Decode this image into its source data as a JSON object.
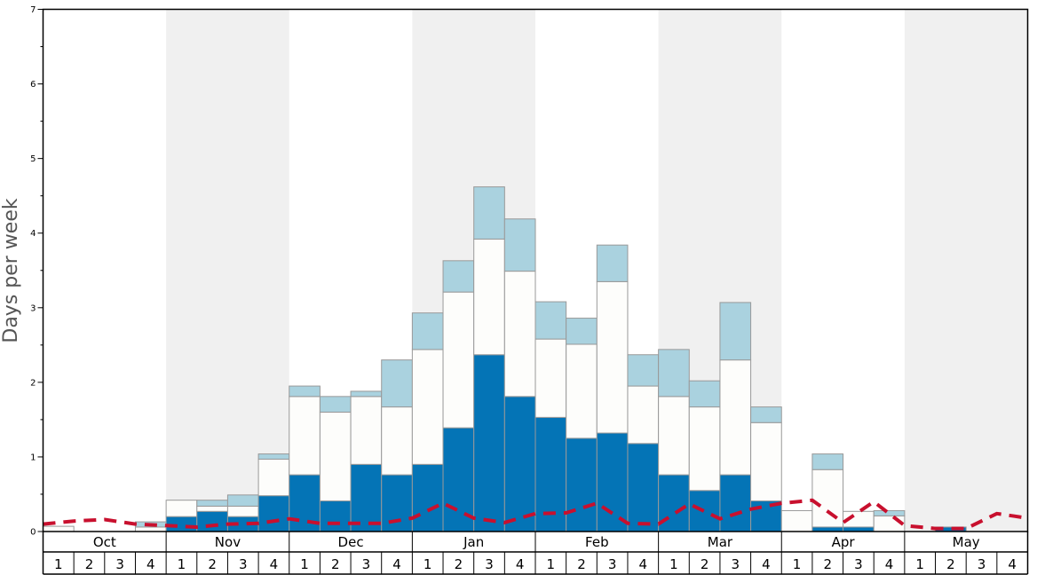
{
  "chart_data": {
    "type": "bar",
    "ylabel": "Days per week",
    "ylim": [
      0,
      7
    ],
    "yticks": [
      0,
      1,
      2,
      3,
      4,
      5,
      6,
      7
    ],
    "months": [
      "Oct",
      "Nov",
      "Dec",
      "Jan",
      "Feb",
      "Mar",
      "Apr",
      "May"
    ],
    "week_labels": [
      "1",
      "2",
      "3",
      "4"
    ],
    "stacked": true,
    "series": [
      {
        "color": "#0474b6",
        "values": [
          0,
          0,
          0,
          0,
          0.2,
          0.27,
          0.2,
          0.48,
          0.76,
          0.41,
          0.9,
          0.76,
          0.9,
          1.39,
          2.37,
          1.81,
          1.53,
          1.25,
          1.32,
          1.18,
          0.76,
          0.55,
          0.76,
          0.41,
          0,
          0.06,
          0.06,
          0,
          0,
          0.06,
          0,
          0
        ]
      },
      {
        "color": "#fdfdfb",
        "values": [
          0.07,
          0,
          0,
          0.06,
          0.22,
          0.07,
          0.14,
          0.49,
          1.05,
          1.19,
          0.91,
          0.91,
          1.54,
          1.82,
          1.55,
          1.68,
          1.05,
          1.26,
          2.03,
          0.77,
          1.05,
          1.12,
          1.54,
          1.05,
          0.28,
          0.77,
          0.21,
          0.21,
          0,
          0,
          0,
          0
        ]
      },
      {
        "color": "#aad2df",
        "values": [
          0,
          0,
          0,
          0.07,
          0,
          0.08,
          0.15,
          0.07,
          0.14,
          0.21,
          0.07,
          0.63,
          0.49,
          0.42,
          0.7,
          0.7,
          0.5,
          0.35,
          0.49,
          0.42,
          0.63,
          0.35,
          0.77,
          0.21,
          0,
          0.21,
          0,
          0.07,
          0,
          0,
          0,
          0
        ]
      }
    ],
    "line": {
      "color": "#c8102e",
      "style": "dashed",
      "values": [
        0.1,
        0.14,
        0.16,
        0.1,
        0.08,
        0.06,
        0.1,
        0.11,
        0.17,
        0.11,
        0.11,
        0.11,
        0.18,
        0.38,
        0.18,
        0.12,
        0.24,
        0.25,
        0.38,
        0.11,
        0.1,
        0.37,
        0.17,
        0.3,
        0.38,
        0.42,
        0.12,
        0.4,
        0.08,
        0.04,
        0.04,
        0.24,
        0.18
      ]
    },
    "shaded_months": [
      "Nov",
      "Jan",
      "Mar",
      "May"
    ],
    "shade_color": "#f0f0f0",
    "grid": false,
    "legend": "none"
  }
}
